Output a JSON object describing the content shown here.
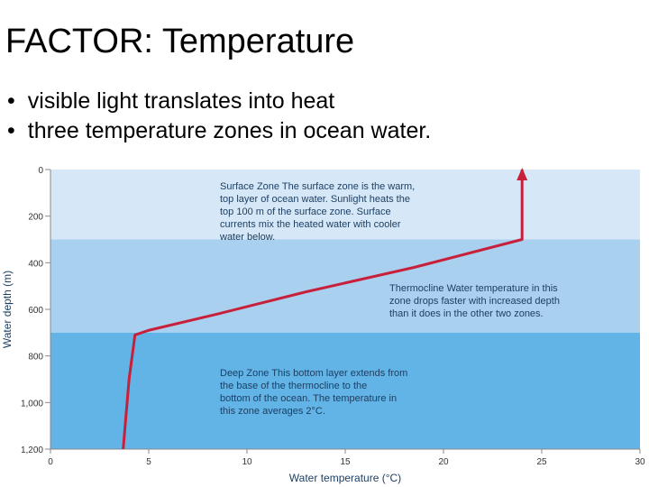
{
  "title": "FACTOR: Temperature",
  "bullets": [
    "visible light translates into heat",
    "three temperature zones in ocean water."
  ],
  "chart_data": {
    "type": "line",
    "xlabel": "Water temperature (°C)",
    "ylabel": "Water depth (m)",
    "xlim": [
      0,
      30
    ],
    "ylim": [
      0,
      1200
    ],
    "y_inverted": true,
    "x_ticks": [
      "0",
      "5",
      "10",
      "15",
      "20",
      "25",
      "30"
    ],
    "x_tick_values": [
      0,
      5,
      10,
      15,
      20,
      25,
      30
    ],
    "y_ticks": [
      "0",
      "200",
      "400",
      "600",
      "800",
      "1,000",
      "1,200"
    ],
    "y_tick_values": [
      0,
      200,
      400,
      600,
      800,
      1000,
      1200
    ],
    "zones": [
      {
        "name": "Surface Zone",
        "from": 0,
        "to": 300,
        "color": "#d6e8f7",
        "text": "The surface zone is the warm, top layer of ocean water. Sunlight heats the top 100 m of the surface zone. Surface currents mix the heated water with cooler water below."
      },
      {
        "name": "Thermocline",
        "from": 300,
        "to": 700,
        "color": "#a9d0ef",
        "text": "Water temperature in this zone drops faster with increased depth than it does in the other two zones."
      },
      {
        "name": "Deep Zone",
        "from": 700,
        "to": 1200,
        "color": "#62b3e6",
        "text": "This bottom layer extends from the base of the thermocline to the bottom of the ocean. The temperature in this zone averages 2°C."
      }
    ],
    "series": [
      {
        "color": "#c8203a",
        "points": [
          [
            3.7,
            1200
          ],
          [
            4.0,
            900
          ],
          [
            4.3,
            710
          ],
          [
            5.0,
            690
          ],
          [
            8.5,
            620
          ],
          [
            13.0,
            525
          ],
          [
            18.5,
            420
          ],
          [
            24.0,
            300
          ],
          [
            24.0,
            0
          ]
        ]
      }
    ]
  }
}
